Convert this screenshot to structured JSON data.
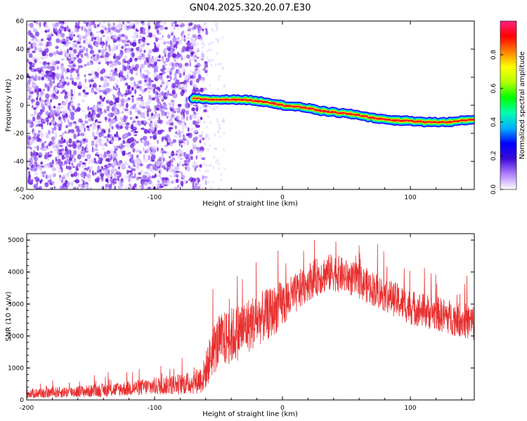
{
  "title": "GN04.2025.320.20.07.E30",
  "colors": {
    "snr_line": "#e83030",
    "scatter": "#7a2ee0",
    "ridge_core": "#e8402a",
    "axis": "#000000"
  },
  "chart_data": [
    {
      "type": "heatmap",
      "name": "spectrogram",
      "xlabel": "Height of straight line (km)",
      "ylabel": "Frequency (Hz)",
      "xlim": [
        -200,
        150
      ],
      "ylim": [
        -60,
        60
      ],
      "xticks": [
        -200,
        -100,
        0,
        100
      ],
      "yticks": [
        -60,
        -40,
        -20,
        0,
        20,
        40,
        60
      ],
      "noise_region_x": [
        -200,
        -65
      ],
      "ridge": {
        "x": [
          -70,
          -60,
          -50,
          -40,
          -30,
          -20,
          -10,
          0,
          10,
          20,
          30,
          40,
          50,
          60,
          70,
          80,
          90,
          100,
          110,
          120,
          130,
          140,
          150
        ],
        "hz": [
          5,
          4,
          4,
          4,
          4,
          3,
          2,
          0,
          -1,
          -2,
          -4,
          -5,
          -6,
          -7,
          -9,
          -10,
          -11,
          -11,
          -12,
          -12,
          -12,
          -11,
          -10
        ]
      },
      "colorbar": {
        "label": "Normalized spectral amplitude",
        "range": [
          0,
          1
        ],
        "ticks": [
          "0.0",
          "0.2",
          "0.4",
          "0.6",
          "0.8"
        ],
        "tick_values": [
          0,
          0.2,
          0.4,
          0.6,
          0.8
        ],
        "stops": [
          "#ffffff",
          "#b080ff",
          "#3b0bd6",
          "#0000ff",
          "#00b0ff",
          "#00ffb0",
          "#00ff00",
          "#b0ff00",
          "#ffff00",
          "#ff8000",
          "#ff0000",
          "#ff2080"
        ]
      }
    },
    {
      "type": "line",
      "name": "snr",
      "xlabel": "Height of straight line (km)",
      "ylabel": "SNR (10 * v/v)",
      "xlim": [
        -200,
        150
      ],
      "ylim": [
        0,
        5200
      ],
      "xticks": [
        -200,
        -100,
        0,
        100
      ],
      "yticks": [
        0,
        1000,
        2000,
        3000,
        4000,
        5000
      ],
      "series": [
        {
          "name": "SNR",
          "x": [
            -200,
            -180,
            -160,
            -140,
            -120,
            -100,
            -80,
            -70,
            -62,
            -55,
            -50,
            -40,
            -30,
            -20,
            -10,
            0,
            10,
            20,
            30,
            40,
            50,
            60,
            70,
            80,
            90,
            100,
            110,
            120,
            130,
            140,
            150
          ],
          "base": [
            200,
            230,
            260,
            300,
            360,
            430,
            500,
            540,
            700,
            1500,
            1800,
            2000,
            2250,
            2500,
            2700,
            3000,
            3300,
            3700,
            3900,
            4000,
            3850,
            3700,
            3500,
            3300,
            3100,
            2900,
            2800,
            2700,
            2600,
            2500,
            2400
          ],
          "spread": [
            150,
            170,
            190,
            210,
            240,
            280,
            330,
            360,
            500,
            800,
            850,
            900,
            900,
            850,
            800,
            750,
            650,
            600,
            600,
            600,
            550,
            550,
            550,
            550,
            550,
            550,
            550,
            550,
            550,
            550,
            600
          ]
        }
      ]
    }
  ]
}
